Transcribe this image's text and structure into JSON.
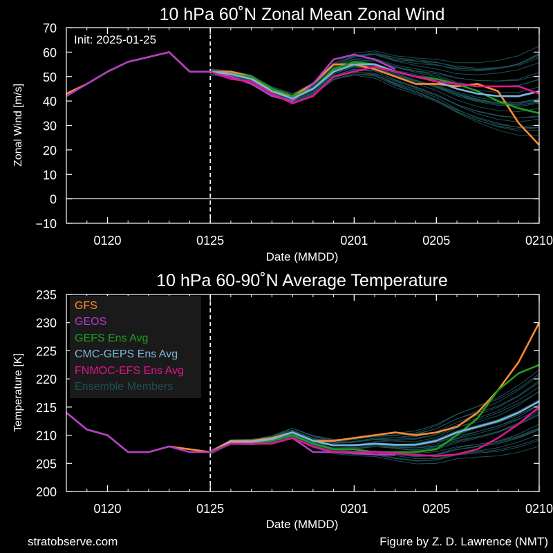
{
  "footer": {
    "left": "stratobserve.com",
    "right": "Figure by Z. D. Lawrence (NMT)"
  },
  "colors": {
    "background": "#000000",
    "GFS": "#ff8c2e",
    "GEOS": "#b03ec9",
    "GEFS": "#1f9e1f",
    "CMC": "#7fb4de",
    "FNMOC": "#e0168c",
    "members": "#1e4f55"
  },
  "chart_data": [
    {
      "type": "line",
      "title": "10 hPa  60˚N   Zonal Mean Zonal Wind",
      "xlabel": "Date (MMDD)",
      "ylabel": "Zonal  Wind   [m/s]",
      "annotation": "Init: 2025-01-25",
      "init_day": "0125",
      "x_range": [
        "0118",
        "0210"
      ],
      "ylim": [
        -10,
        70
      ],
      "yticks": [
        -10,
        0,
        10,
        20,
        30,
        40,
        50,
        60,
        70
      ],
      "xticks": [
        "0120",
        "0125",
        "0201",
        "0205",
        "0210"
      ],
      "zero_line": true,
      "legend": "none",
      "series": [
        {
          "name": "GFS",
          "x": [
            "0118",
            "0119",
            "0120",
            "0121",
            "0122",
            "0123",
            "0124",
            "0125",
            "0126",
            "0127",
            "0128",
            "0129",
            "0130",
            "0131",
            "0201",
            "0202",
            "0203",
            "0204",
            "0205",
            "0206",
            "0207",
            "0208",
            "0209",
            "0210"
          ],
          "values": [
            43,
            47,
            52,
            56,
            58,
            60,
            52,
            52,
            52,
            50,
            44,
            42,
            47,
            55,
            55,
            53,
            50,
            47,
            47,
            46,
            47,
            44,
            31,
            22
          ]
        },
        {
          "name": "GEOS",
          "x": [
            "0118",
            "0119",
            "0120",
            "0121",
            "0122",
            "0123",
            "0124",
            "0125",
            "0126",
            "0127",
            "0128",
            "0129",
            "0130",
            "0131",
            "0201",
            "0202",
            "0203"
          ],
          "values": [
            42,
            47,
            52,
            56,
            58,
            60,
            52,
            52,
            50,
            47,
            42,
            40,
            47,
            57,
            59,
            57,
            53
          ]
        },
        {
          "name": "GEFS Ens Avg",
          "x": [
            "0125",
            "0126",
            "0127",
            "0128",
            "0129",
            "0130",
            "0131",
            "0201",
            "0202",
            "0203",
            "0204",
            "0205",
            "0206",
            "0207",
            "0208",
            "0209",
            "0210"
          ],
          "values": [
            52,
            51,
            50,
            45,
            42,
            45,
            53,
            56,
            55,
            52,
            50,
            49,
            47,
            44,
            40,
            37,
            35
          ]
        },
        {
          "name": "CMC-GEPS Ens Avg",
          "x": [
            "0125",
            "0126",
            "0127",
            "0128",
            "0129",
            "0130",
            "0131",
            "0201",
            "0202",
            "0203",
            "0204",
            "0205",
            "0206",
            "0207",
            "0208",
            "0209",
            "0210"
          ],
          "values": [
            52,
            51,
            49,
            44,
            41,
            45,
            52,
            55,
            55,
            52,
            50,
            48,
            45,
            43,
            42,
            42,
            44
          ]
        },
        {
          "name": "FNMOC-EFS Ens Avg",
          "x": [
            "0125",
            "0126",
            "0127",
            "0128",
            "0129",
            "0130",
            "0131",
            "0201",
            "0202",
            "0203",
            "0204",
            "0205",
            "0206",
            "0207",
            "0208",
            "0209",
            "0210"
          ],
          "values": [
            52,
            49,
            48,
            43,
            39,
            42,
            50,
            52,
            54,
            52,
            50,
            48,
            47,
            46,
            46,
            46,
            43
          ]
        }
      ]
    },
    {
      "type": "line",
      "title": "10 hPa  60-90˚N Average Temperature",
      "xlabel": "Date (MMDD)",
      "ylabel": "Temperature  [K]",
      "init_day": "0125",
      "x_range": [
        "0118",
        "0210"
      ],
      "ylim": [
        200,
        235
      ],
      "yticks": [
        200,
        205,
        210,
        215,
        220,
        225,
        230,
        235
      ],
      "xticks": [
        "0120",
        "0125",
        "0201",
        "0205",
        "0210"
      ],
      "legend": "top-left",
      "legend_entries": [
        "GFS",
        "GEOS",
        "GEFS Ens Avg",
        "CMC-GEPS Ens Avg",
        "FNMOC-EFS Ens Avg",
        "Ensemble Members"
      ],
      "series": [
        {
          "name": "GFS",
          "x": [
            "0118",
            "0119",
            "0120",
            "0121",
            "0122",
            "0123",
            "0124",
            "0125",
            "0126",
            "0127",
            "0128",
            "0129",
            "0130",
            "0131",
            "0201",
            "0202",
            "0203",
            "0204",
            "0205",
            "0206",
            "0207",
            "0208",
            "0209",
            "0210"
          ],
          "values": [
            214,
            211,
            210,
            207,
            207,
            208,
            207.5,
            207,
            209,
            209,
            209.5,
            210.5,
            209,
            209,
            209.5,
            210,
            210.5,
            210,
            210.5,
            211.5,
            214,
            218,
            223,
            230
          ]
        },
        {
          "name": "GEOS",
          "x": [
            "0118",
            "0119",
            "0120",
            "0121",
            "0122",
            "0123",
            "0124",
            "0125",
            "0126",
            "0127",
            "0128",
            "0129",
            "0130",
            "0131",
            "0201",
            "0202",
            "0203"
          ],
          "values": [
            214,
            211,
            210,
            207,
            207,
            208,
            207,
            207,
            208.5,
            208.5,
            208.5,
            209.5,
            207,
            207,
            206.8,
            206.6,
            206.5
          ]
        },
        {
          "name": "GEFS Ens Avg",
          "x": [
            "0125",
            "0126",
            "0127",
            "0128",
            "0129",
            "0130",
            "0131",
            "0201",
            "0202",
            "0203",
            "0204",
            "0205",
            "0206",
            "0207",
            "0208",
            "0209",
            "0210"
          ],
          "values": [
            207,
            208.5,
            208.5,
            209,
            210,
            208.5,
            207.5,
            207.5,
            207,
            207,
            207,
            207.5,
            210,
            213,
            218,
            221,
            222.5
          ]
        },
        {
          "name": "CMC-GEPS Ens Avg",
          "x": [
            "0125",
            "0126",
            "0127",
            "0128",
            "0129",
            "0130",
            "0131",
            "0201",
            "0202",
            "0203",
            "0204",
            "0205",
            "0206",
            "0207",
            "0208",
            "0209",
            "0210"
          ],
          "values": [
            207,
            208.8,
            208.8,
            209.3,
            210.5,
            209,
            208.2,
            208.2,
            208.5,
            208.3,
            208.3,
            209,
            210.5,
            211.5,
            212.5,
            214,
            216
          ]
        },
        {
          "name": "FNMOC-EFS Ens Avg",
          "x": [
            "0125",
            "0126",
            "0127",
            "0128",
            "0129",
            "0130",
            "0131",
            "0201",
            "0202",
            "0203",
            "0204",
            "0205",
            "0206",
            "0207",
            "0208",
            "0209",
            "0210"
          ],
          "values": [
            207,
            208.5,
            208.5,
            208.5,
            209.5,
            208,
            207,
            207,
            207,
            206.8,
            206.5,
            206.3,
            206.6,
            207.5,
            209.5,
            212,
            215
          ]
        }
      ]
    }
  ]
}
